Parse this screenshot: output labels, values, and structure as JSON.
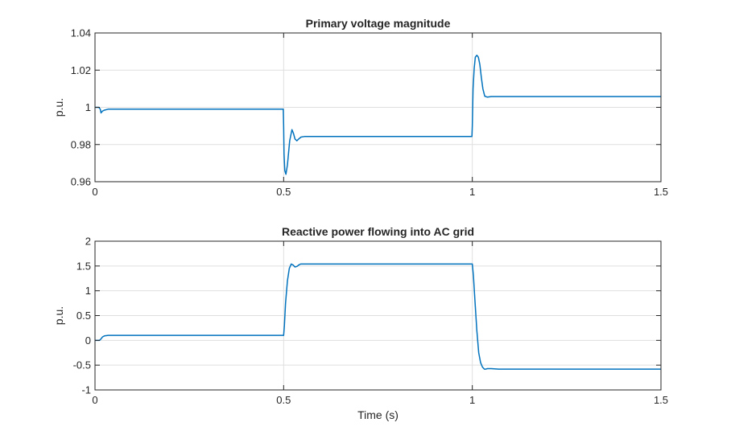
{
  "figure": {
    "background": "#ffffff",
    "line_color": "#0072bd",
    "grid_color": "#dfdfdf",
    "axis_color": "#262626"
  },
  "chart_data": [
    {
      "type": "line",
      "title": "Primary voltage magnitude",
      "xlabel": "",
      "ylabel": "p.u.",
      "xlim": [
        0,
        1.5
      ],
      "ylim": [
        0.96,
        1.04
      ],
      "xticks": [
        0,
        0.5,
        1,
        1.5
      ],
      "xtick_labels": [
        "0",
        "0.5",
        "1",
        "1.5"
      ],
      "yticks": [
        0.96,
        0.98,
        1,
        1.02,
        1.04
      ],
      "ytick_labels": [
        "0.96",
        "0.98",
        "1",
        "1.02",
        "1.04"
      ],
      "grid": true,
      "series": [
        {
          "x": [
            0,
            0.01,
            0.014,
            0.016,
            0.02,
            0.025,
            0.035,
            0.06,
            0.2,
            0.4,
            0.499,
            0.5,
            0.501,
            0.503,
            0.506,
            0.51,
            0.516,
            0.522,
            0.526,
            0.53,
            0.535,
            0.54,
            0.546,
            0.555,
            0.565,
            0.58,
            0.6,
            0.8,
            0.999,
            1.0,
            1.002,
            1.005,
            1.008,
            1.012,
            1.016,
            1.02,
            1.024,
            1.028,
            1.033,
            1.04,
            1.05,
            1.07,
            1.1,
            1.3,
            1.5
          ],
          "y": [
            1.0,
            1.0,
            0.999,
            0.997,
            0.998,
            0.9985,
            0.999,
            0.999,
            0.999,
            0.999,
            0.999,
            0.99,
            0.975,
            0.966,
            0.964,
            0.969,
            0.982,
            0.988,
            0.986,
            0.983,
            0.982,
            0.983,
            0.984,
            0.9843,
            0.9843,
            0.9843,
            0.9843,
            0.9843,
            0.9843,
            0.99,
            1.01,
            1.021,
            1.027,
            1.028,
            1.027,
            1.023,
            1.016,
            1.01,
            1.006,
            1.0055,
            1.0058,
            1.0058,
            1.0058,
            1.0058,
            1.0058
          ]
        }
      ]
    },
    {
      "type": "line",
      "title": "Reactive power flowing into AC grid",
      "xlabel": "Time (s)",
      "ylabel": "p.u.",
      "xlim": [
        0,
        1.5
      ],
      "ylim": [
        -1,
        2
      ],
      "xticks": [
        0,
        0.5,
        1,
        1.5
      ],
      "xtick_labels": [
        "0",
        "0.5",
        "1",
        "1.5"
      ],
      "yticks": [
        -1,
        -0.5,
        0,
        0.5,
        1,
        1.5,
        2
      ],
      "ytick_labels": [
        "-1",
        "-0.5",
        "0",
        "0.5",
        "1",
        "1.5",
        "2"
      ],
      "grid": true,
      "series": [
        {
          "x": [
            0,
            0.008,
            0.012,
            0.016,
            0.02,
            0.025,
            0.035,
            0.06,
            0.2,
            0.4,
            0.5,
            0.502,
            0.505,
            0.51,
            0.515,
            0.52,
            0.525,
            0.53,
            0.535,
            0.54,
            0.545,
            0.55,
            0.57,
            0.7,
            0.9,
            1.0,
            1.003,
            1.007,
            1.012,
            1.017,
            1.022,
            1.027,
            1.032,
            1.036,
            1.04,
            1.05,
            1.07,
            1.1,
            1.3,
            1.5
          ],
          "y": [
            0.0,
            0.0,
            0.0,
            0.03,
            0.07,
            0.09,
            0.1,
            0.1,
            0.1,
            0.1,
            0.1,
            0.3,
            0.75,
            1.2,
            1.45,
            1.54,
            1.52,
            1.48,
            1.49,
            1.52,
            1.54,
            1.54,
            1.54,
            1.54,
            1.54,
            1.54,
            1.3,
            0.8,
            0.2,
            -0.25,
            -0.45,
            -0.54,
            -0.58,
            -0.58,
            -0.57,
            -0.57,
            -0.58,
            -0.58,
            -0.58,
            -0.58
          ]
        }
      ]
    }
  ]
}
